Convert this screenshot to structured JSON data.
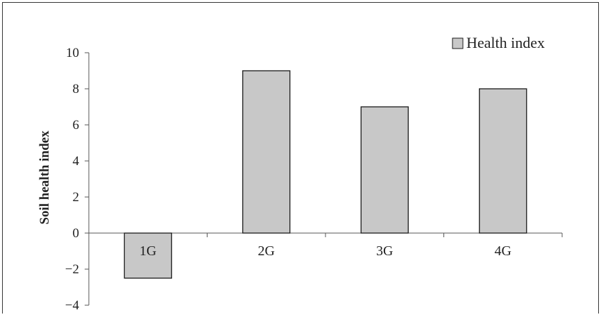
{
  "chart_data": {
    "type": "bar",
    "categories": [
      "1G",
      "2G",
      "3G",
      "4G"
    ],
    "series": [
      {
        "name": "Health index",
        "values": [
          -2.5,
          9,
          7,
          8
        ]
      }
    ],
    "title": "",
    "xlabel": "",
    "ylabel": "Soil health index",
    "ylim": [
      -4,
      10
    ],
    "yticks": [
      -4,
      -2,
      0,
      2,
      4,
      6,
      8,
      10
    ],
    "ytick_labels": [
      "−4",
      "−2",
      "0",
      "2",
      "4",
      "6",
      "8",
      "10"
    ],
    "grid": false,
    "legend_position": "top-right",
    "colors": {
      "bar_fill": "#c8c8c8",
      "bar_stroke": "#1a1a1a",
      "axis": "#555555"
    }
  }
}
